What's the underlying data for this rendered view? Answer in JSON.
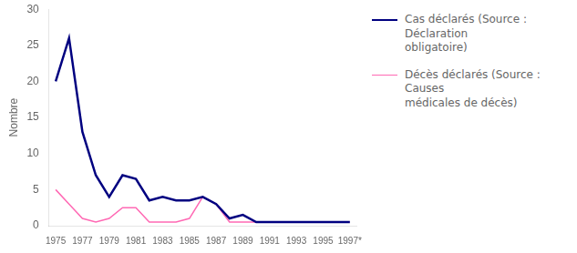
{
  "chart_data": {
    "type": "line",
    "y_label": "Nombre",
    "x": [
      1975,
      1976,
      1977,
      1978,
      1979,
      1980,
      1981,
      1982,
      1983,
      1984,
      1985,
      1986,
      1987,
      1988,
      1989,
      1990,
      1991,
      1992,
      1993,
      1994,
      1995,
      1996,
      1997
    ],
    "series": [
      {
        "name": "Cas déclarés (Source : Déclaration\nobligatoire)",
        "color": "#000080",
        "values": [
          20,
          26,
          13,
          7,
          4,
          7,
          6.5,
          3.5,
          4,
          3.5,
          3.5,
          4,
          3,
          1,
          1.5,
          0.5,
          0.5,
          0.5,
          0.5,
          0.5,
          0.5,
          0.5,
          0.5
        ]
      },
      {
        "name": "Décès déclarés (Source : Causes\nmédicales de décès)",
        "color": "#FF69B4",
        "values": [
          5,
          3,
          1,
          0.5,
          1,
          2.5,
          2.5,
          0.5,
          0.5,
          0.5,
          1,
          4,
          3,
          0.5,
          0.5,
          0.5,
          0.5,
          0.5,
          0.5,
          0.5,
          0.5,
          0.5,
          0.5
        ]
      }
    ],
    "xlim": [
      1974.5,
      1997.5
    ],
    "xticks": [
      1975,
      1977,
      1979,
      1981,
      1983,
      1985,
      1987,
      1989,
      1991,
      1993,
      1995,
      {
        "value": 1997,
        "label": "1997*"
      }
    ],
    "ylim": [
      0,
      30
    ],
    "yticks": [
      0,
      5,
      10,
      15,
      20,
      25,
      30
    ],
    "legend": "right",
    "grid": false
  }
}
